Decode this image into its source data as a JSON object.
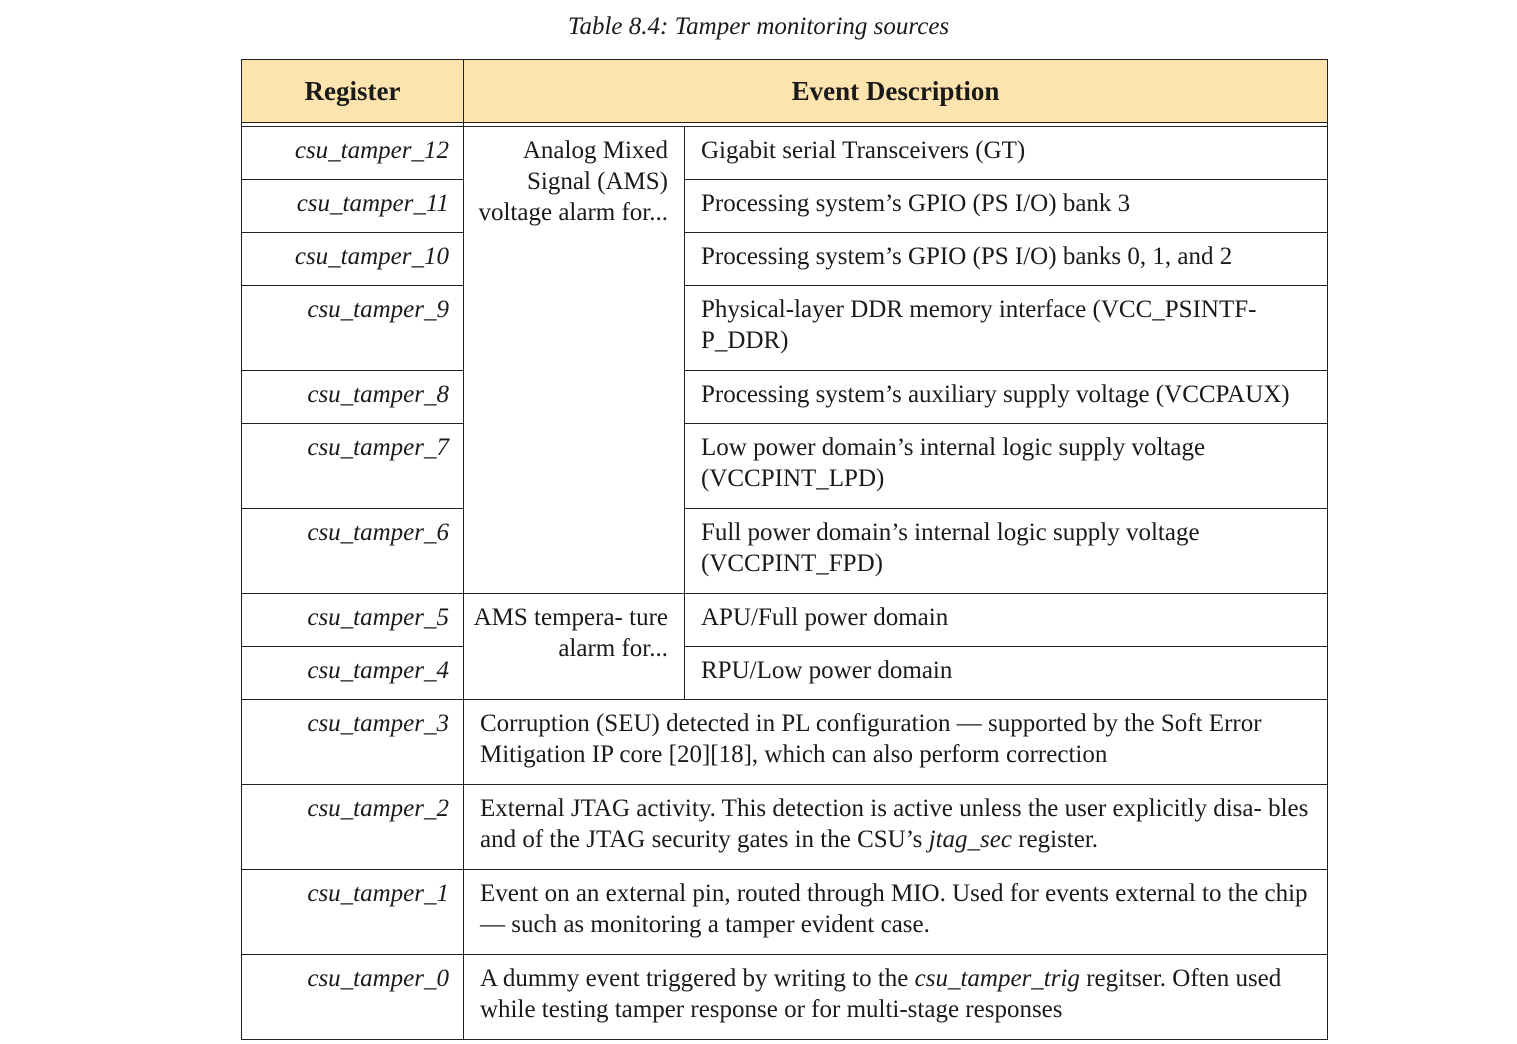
{
  "caption": {
    "label": "Table 8.4:",
    "title": "Tamper monitoring sources"
  },
  "table": {
    "headers": {
      "register": "Register",
      "event_description": "Event Description"
    },
    "groups": {
      "ams_voltage": "Analog Mixed Signal (AMS) voltage alarm for...",
      "ams_temperature": "AMS tempera- ture alarm for..."
    },
    "rows": [
      {
        "register": "csu_tamper_12",
        "description": "Gigabit serial Transceivers (GT)"
      },
      {
        "register": "csu_tamper_11",
        "description": "Processing system’s GPIO (PS I/O) bank 3"
      },
      {
        "register": "csu_tamper_10",
        "description": "Processing system’s GPIO (PS I/O) banks 0, 1, and 2"
      },
      {
        "register": "csu_tamper_9",
        "description": "Physical-layer DDR memory interface (VCC_PSINTF- P_DDR)"
      },
      {
        "register": "csu_tamper_8",
        "description": "Processing system’s auxiliary supply voltage (VCCPAUX)"
      },
      {
        "register": "csu_tamper_7",
        "description": "Low power domain’s internal logic supply voltage (VCCPINT_LPD)"
      },
      {
        "register": "csu_tamper_6",
        "description": "Full power domain’s internal logic supply voltage (VCCPINT_FPD)"
      },
      {
        "register": "csu_tamper_5",
        "description": "APU/Full power domain"
      },
      {
        "register": "csu_tamper_4",
        "description": "RPU/Low power domain"
      },
      {
        "register": "csu_tamper_3",
        "description": "Corruption (SEU) detected in PL configuration — supported by the Soft Error Mitigation IP core [20][18], which can also perform correction"
      },
      {
        "register": "csu_tamper_2",
        "description_before": "External JTAG activity. This detection is active unless the user explicitly disa- bles and of the JTAG security gates in the CSU’s ",
        "description_em": "jtag_sec",
        "description_after": " register."
      },
      {
        "register": "csu_tamper_1",
        "description": "Event on an external pin, routed through MIO. Used for events external to the chip — such as monitoring a tamper evident case."
      },
      {
        "register": "csu_tamper_0",
        "description_before": "A dummy event triggered by writing to the ",
        "description_em": "csu_tamper_trig",
        "description_after": " regitser. Often used while testing tamper response or for multi-stage responses"
      }
    ]
  }
}
